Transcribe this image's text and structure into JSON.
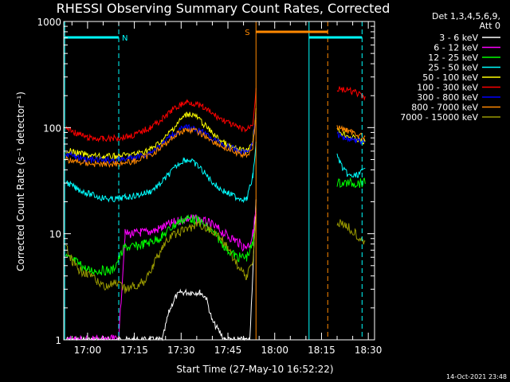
{
  "chart_data": {
    "type": "line",
    "title": "RHESSI Observing Summary Count Rates, Corrected",
    "xlabel": "Start Time (27-May-10 16:52:22)",
    "ylabel": "Corrected Count Rate (s⁻¹ detector⁻¹)",
    "yscale": "log",
    "ylim": [
      1,
      1000
    ],
    "xlim": [
      "16:52:22",
      "18:32"
    ],
    "x_tick_labels": [
      "17:00",
      "17:15",
      "17:30",
      "17:45",
      "18:00",
      "18:15",
      "18:30"
    ],
    "y_tick_labels": [
      "1",
      "10",
      "100",
      "1000"
    ],
    "grid": false,
    "legend_position": "right",
    "legend_header": [
      "Det 1,3,4,5,6,9,",
      "Att 0"
    ],
    "series": [
      {
        "name": "3 - 6 keV",
        "color": "#ffffff",
        "x": [
          "16:53",
          "16:57",
          "17:00",
          "17:08",
          "17:12",
          "17:18",
          "17:22",
          "17:24",
          "17:26",
          "17:28",
          "17:30",
          "17:33",
          "17:36",
          "17:38",
          "17:40",
          "17:44",
          "17:47",
          "17:50",
          "17:52",
          "17:54"
        ],
        "y": [
          1,
          1,
          1,
          1,
          1,
          1,
          1,
          1,
          1.8,
          2.5,
          2.8,
          2.8,
          2.8,
          2.5,
          1.5,
          1,
          1,
          1,
          1,
          20
        ]
      },
      {
        "name": "6 - 12 keV",
        "color": "#ff00ff",
        "x": [
          "16:53",
          "16:56",
          "16:57",
          "17:00",
          "17:05",
          "17:08",
          "17:10",
          "17:12",
          "17:15",
          "17:17",
          "17:18",
          "17:20",
          "17:22",
          "17:24",
          "17:27",
          "17:30",
          "17:33",
          "17:36",
          "17:39",
          "17:42",
          "17:45",
          "17:48",
          "17:50",
          "17:52",
          "17:53",
          "17:54"
        ],
        "y": [
          1,
          1,
          1,
          1,
          1,
          1,
          1,
          10,
          10,
          10.3,
          10.2,
          10.5,
          10.8,
          11.5,
          12.5,
          13.5,
          14,
          13.5,
          12.5,
          11,
          9.5,
          8.5,
          7.5,
          8,
          10,
          17
        ]
      },
      {
        "name": "12 - 25 keV",
        "color": "#00ff00",
        "x": [
          "16:53",
          "16:56",
          "16:58",
          "17:00",
          "17:04",
          "17:08",
          "17:12",
          "17:15",
          "17:18",
          "17:21",
          "17:24",
          "17:27",
          "17:30",
          "17:33",
          "17:36",
          "17:39",
          "17:42",
          "17:45",
          "17:48",
          "17:51",
          "17:53",
          "17:54",
          "18:20",
          "18:23",
          "18:26",
          "18:29"
        ],
        "y": [
          6,
          5.5,
          5,
          4.5,
          4.5,
          4.5,
          7.5,
          7.5,
          8,
          8.5,
          9.5,
          11.5,
          13.5,
          14,
          13,
          11,
          9,
          7,
          6,
          6,
          8,
          14,
          30,
          30,
          30,
          30
        ]
      },
      {
        "name": "25 - 50 keV",
        "color": "#00ffff",
        "x": [
          "16:53",
          "16:56",
          "17:00",
          "17:04",
          "17:08",
          "17:12",
          "17:16",
          "17:20",
          "17:23",
          "17:26",
          "17:29",
          "17:31",
          "17:33",
          "17:36",
          "17:39",
          "17:42",
          "17:45",
          "17:48",
          "17:51",
          "17:53",
          "17:54",
          "18:20",
          "18:22",
          "18:24",
          "18:26",
          "18:29"
        ],
        "y": [
          31,
          27,
          24,
          22,
          21,
          22,
          23,
          25,
          29,
          36,
          45,
          50,
          49,
          42,
          33,
          27,
          24,
          22,
          21,
          35,
          70,
          55,
          40,
          35,
          35,
          40
        ]
      },
      {
        "name": "50 - 100 keV",
        "color": "#ffff00",
        "x": [
          "16:53",
          "16:56",
          "17:00",
          "17:05",
          "17:10",
          "17:15",
          "17:20",
          "17:24",
          "17:27",
          "17:30",
          "17:32",
          "17:34",
          "17:36",
          "17:39",
          "17:42",
          "17:45",
          "17:48",
          "17:51",
          "17:53",
          "17:54",
          "18:20",
          "18:23",
          "18:26",
          "18:29"
        ],
        "y": [
          62,
          58,
          55,
          53,
          54,
          56,
          62,
          75,
          95,
          120,
          135,
          132,
          118,
          95,
          78,
          68,
          62,
          60,
          75,
          150,
          95,
          85,
          78,
          72
        ]
      },
      {
        "name": "100 - 300 keV",
        "color": "#ff0000",
        "x": [
          "16:53",
          "16:56",
          "17:00",
          "17:05",
          "17:10",
          "17:15",
          "17:20",
          "17:24",
          "17:27",
          "17:30",
          "17:32",
          "17:34",
          "17:37",
          "17:40",
          "17:44",
          "17:48",
          "17:51",
          "17:53",
          "17:54",
          "18:20",
          "18:23",
          "18:26",
          "18:29"
        ],
        "y": [
          100,
          90,
          80,
          78,
          80,
          85,
          100,
          120,
          145,
          165,
          175,
          170,
          155,
          135,
          115,
          100,
          95,
          110,
          230,
          230,
          225,
          215,
          185
        ]
      },
      {
        "name": "300 - 800 keV",
        "color": "#0000ff",
        "x": [
          "16:53",
          "16:56",
          "17:00",
          "17:05",
          "17:10",
          "17:15",
          "17:20",
          "17:24",
          "17:27",
          "17:30",
          "17:32",
          "17:34",
          "17:37",
          "17:40",
          "17:44",
          "17:48",
          "17:51",
          "17:53",
          "17:54",
          "18:20",
          "18:23",
          "18:26",
          "18:29"
        ],
        "y": [
          57,
          53,
          50,
          49,
          50,
          52,
          58,
          70,
          85,
          97,
          100,
          98,
          90,
          78,
          68,
          61,
          59,
          70,
          140,
          85,
          80,
          77,
          73
        ]
      },
      {
        "name": "800 - 7000 keV",
        "color": "#ff8800",
        "x": [
          "16:53",
          "16:56",
          "17:00",
          "17:05",
          "17:10",
          "17:15",
          "17:20",
          "17:24",
          "17:27",
          "17:30",
          "17:32",
          "17:34",
          "17:37",
          "17:40",
          "17:44",
          "17:48",
          "17:51",
          "17:53",
          "17:54",
          "18:20",
          "18:23",
          "18:26",
          "18:29"
        ],
        "y": [
          50,
          48,
          46,
          45,
          46,
          48,
          55,
          66,
          80,
          92,
          96,
          94,
          86,
          75,
          64,
          57,
          55,
          65,
          130,
          100,
          95,
          88,
          80
        ]
      },
      {
        "name": "7000 - 15000 keV",
        "color": "#999900",
        "x": [
          "16:53",
          "16:55",
          "16:57",
          "17:00",
          "17:03",
          "17:06",
          "17:09",
          "17:12",
          "17:15",
          "17:18",
          "17:21",
          "17:24",
          "17:27",
          "17:30",
          "17:33",
          "17:36",
          "17:39",
          "17:42",
          "17:45",
          "17:48",
          "17:51",
          "17:53",
          "17:54",
          "18:20",
          "18:23",
          "18:26",
          "18:29"
        ],
        "y": [
          7.5,
          5.5,
          4.5,
          4.3,
          3.5,
          3.2,
          3.4,
          3,
          3.2,
          3.5,
          5,
          7.5,
          9.5,
          10.5,
          11.5,
          12,
          11,
          9.5,
          7.5,
          5,
          4,
          5.5,
          14,
          13,
          12,
          10,
          8.5
        ]
      }
    ],
    "annotations": [
      {
        "type": "vline",
        "x": "16:52:40",
        "color": "#00ffff",
        "style": "solid"
      },
      {
        "type": "vline",
        "x": "17:10",
        "color": "#00ffff",
        "style": "dashed"
      },
      {
        "type": "vline",
        "x": "17:54",
        "color": "#ff8800",
        "style": "solid"
      },
      {
        "type": "vline",
        "x": "18:11",
        "color": "#00ffff",
        "style": "solid"
      },
      {
        "type": "vline",
        "x": "18:17",
        "color": "#ff8800",
        "style": "dashed"
      },
      {
        "type": "vline",
        "x": "18:28",
        "color": "#00ffff",
        "style": "dashed"
      },
      {
        "type": "flag_bar",
        "label": "N",
        "x_start": "16:52:40",
        "x_end": "17:10",
        "color": "#00ffff"
      },
      {
        "type": "flag_bar",
        "label": "S",
        "x_start": "17:54",
        "x_end": "18:17",
        "color": "#ff8800"
      },
      {
        "type": "flag_bar",
        "label": "",
        "x_start": "18:11",
        "x_end": "18:28",
        "color": "#00ffff"
      }
    ]
  },
  "timestamp": "14-Oct-2021 23:48"
}
